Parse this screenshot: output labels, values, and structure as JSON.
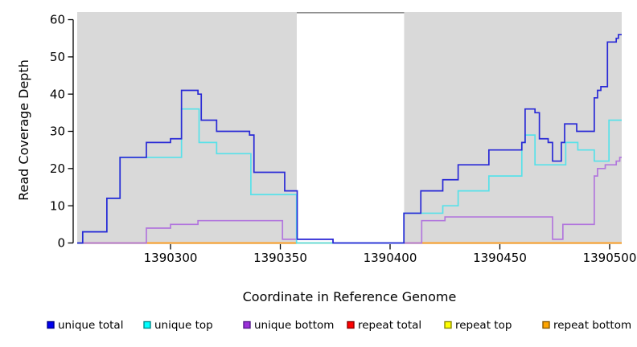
{
  "figure": {
    "background": "#ffffff"
  },
  "chart_data": {
    "type": "line",
    "subtype": "step-coverage-plot",
    "title": "",
    "xlabel": "Coordinate in Reference Genome",
    "ylabel": "Read Coverage Depth",
    "xlim": [
      1390257.5,
      1390505.5
    ],
    "ylim": [
      0,
      62
    ],
    "x_ticks": [
      1390300,
      1390350,
      1390400,
      1390450,
      1390500
    ],
    "y_ticks": [
      0,
      10,
      20,
      30,
      40,
      50,
      60
    ],
    "grid": false,
    "panel_color": "#d9d9d9",
    "masked_region": {
      "start": 1390357.5,
      "end": 1390406.4,
      "color": "#ffffff",
      "top_border_color": "#8f8f8f"
    },
    "legend_position": "bottom",
    "draw_order": [
      "repeat total",
      "repeat top",
      "repeat bottom",
      "unique bottom",
      "unique top",
      "unique total"
    ],
    "series": [
      {
        "name": "unique total",
        "line_color": "#2929d6",
        "legend_fill": "#0000f0",
        "legend_border": "#00008b",
        "points": [
          [
            1390257.5,
            0
          ],
          [
            1390260,
            3
          ],
          [
            1390271,
            12
          ],
          [
            1390277,
            23
          ],
          [
            1390289,
            27
          ],
          [
            1390300,
            28
          ],
          [
            1390305,
            41
          ],
          [
            1390312.5,
            40
          ],
          [
            1390314,
            33
          ],
          [
            1390321,
            30
          ],
          [
            1390336,
            29
          ],
          [
            1390338,
            19
          ],
          [
            1390352,
            14
          ],
          [
            1390357.7,
            1
          ],
          [
            1390374,
            0
          ],
          [
            1390406.3,
            8
          ],
          [
            1390414,
            14
          ],
          [
            1390424,
            17
          ],
          [
            1390431,
            21
          ],
          [
            1390445,
            25
          ],
          [
            1390460,
            27
          ],
          [
            1390461.5,
            36
          ],
          [
            1390466,
            35
          ],
          [
            1390468,
            28
          ],
          [
            1390472,
            27
          ],
          [
            1390474,
            22
          ],
          [
            1390478,
            27
          ],
          [
            1390479.5,
            32
          ],
          [
            1390485,
            30
          ],
          [
            1390493,
            39
          ],
          [
            1390494.5,
            41
          ],
          [
            1390496,
            42
          ],
          [
            1390499,
            54
          ],
          [
            1390503,
            55
          ],
          [
            1390504,
            56
          ],
          [
            1390505.5,
            56
          ]
        ]
      },
      {
        "name": "unique top",
        "line_color": "#57e1e9",
        "legend_fill": "#00ffff",
        "legend_border": "#008b8b",
        "points": [
          [
            1390257.5,
            0
          ],
          [
            1390260,
            3
          ],
          [
            1390271,
            12
          ],
          [
            1390277,
            23
          ],
          [
            1390305,
            36
          ],
          [
            1390313,
            27
          ],
          [
            1390321,
            24
          ],
          [
            1390336.6,
            13
          ],
          [
            1390357.4,
            0
          ],
          [
            1390406.3,
            8
          ],
          [
            1390424,
            10
          ],
          [
            1390431,
            14
          ],
          [
            1390445,
            18
          ],
          [
            1390460,
            27
          ],
          [
            1390461.5,
            29
          ],
          [
            1390466,
            21
          ],
          [
            1390480,
            27
          ],
          [
            1390485.5,
            25
          ],
          [
            1390493,
            22
          ],
          [
            1390499.7,
            33
          ],
          [
            1390505.5,
            33
          ]
        ]
      },
      {
        "name": "unique bottom",
        "line_color": "#b277dd",
        "legend_fill": "#9b30d9",
        "legend_border": "#551a8b",
        "points": [
          [
            1390257.5,
            0
          ],
          [
            1390289,
            4
          ],
          [
            1390300,
            5
          ],
          [
            1390312.5,
            6
          ],
          [
            1390351,
            1
          ],
          [
            1390374,
            0
          ],
          [
            1390414.4,
            6
          ],
          [
            1390425,
            7
          ],
          [
            1390474,
            1
          ],
          [
            1390478.7,
            5
          ],
          [
            1390493,
            18
          ],
          [
            1390494.5,
            20
          ],
          [
            1390498,
            21
          ],
          [
            1390503,
            22
          ],
          [
            1390504.6,
            23
          ],
          [
            1390505.5,
            23
          ]
        ]
      },
      {
        "name": "repeat total",
        "line_color": "#e00000",
        "legend_fill": "#ff0000",
        "legend_border": "#8b0000",
        "points": [
          [
            1390257.5,
            0
          ],
          [
            1390505.5,
            0
          ]
        ]
      },
      {
        "name": "repeat top",
        "line_color": "#ffff00",
        "legend_fill": "#ffff00",
        "legend_border": "#8b8b00",
        "points": [
          [
            1390257.5,
            0
          ],
          [
            1390505.5,
            0
          ]
        ]
      },
      {
        "name": "repeat bottom",
        "line_color": "#ff9d2e",
        "legend_fill": "#ffa500",
        "legend_border": "#8b5a00",
        "points": [
          [
            1390257.5,
            0
          ],
          [
            1390505.5,
            0
          ]
        ]
      }
    ]
  }
}
